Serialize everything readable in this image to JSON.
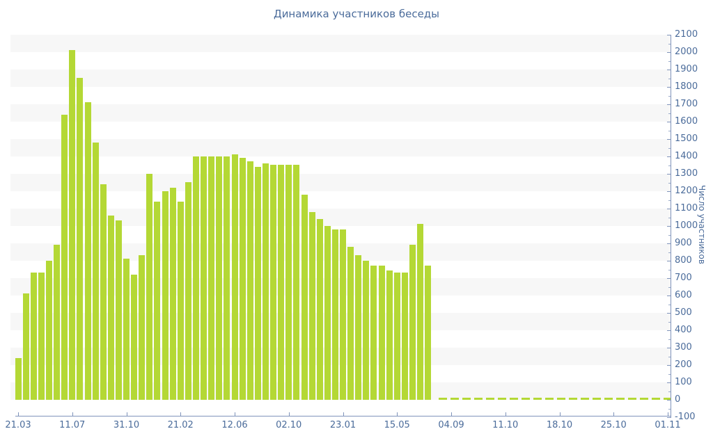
{
  "page": {
    "background": "#ffffff"
  },
  "chart_data": {
    "type": "bar",
    "title": "Динамика участников беседы",
    "xlabel": "",
    "ylabel": "Число участников",
    "legend": "none",
    "grid": "horizontal-striped-bands",
    "ylim": [
      -100,
      2100
    ],
    "y_tick_step": 100,
    "y_tick_labels": [
      "2100",
      "2000",
      "1900",
      "1800",
      "1700",
      "1600",
      "1500",
      "1400",
      "1300",
      "1200",
      "1100",
      "1000",
      "900",
      "800",
      "700",
      "600",
      "500",
      "400",
      "300",
      "200",
      "100",
      "0",
      "-100"
    ],
    "x_tick_labels": [
      "21.03",
      "11.07",
      "31.10",
      "21.02",
      "12.06",
      "02.10",
      "23.01",
      "15.05",
      "04.09",
      "11.10",
      "18.10",
      "25.10",
      "01.11"
    ],
    "label_every": 7,
    "values": [
      240,
      610,
      730,
      730,
      800,
      890,
      1640,
      2010,
      1850,
      1710,
      1480,
      1240,
      1060,
      1030,
      810,
      720,
      830,
      1300,
      1140,
      1200,
      1220,
      1140,
      1250,
      1400,
      1400,
      1400,
      1400,
      1400,
      1410,
      1390,
      1370,
      1340,
      1360,
      1350,
      1350,
      1350,
      1350,
      1180,
      1080,
      1040,
      1000,
      980,
      980,
      880,
      830,
      800,
      770,
      770,
      745,
      730,
      730,
      890,
      1010,
      770,
      0,
      0,
      0,
      0,
      0,
      0,
      0,
      0,
      0,
      0,
      0,
      0,
      0,
      0,
      0,
      0,
      0,
      0,
      0,
      0,
      0,
      0,
      0,
      0,
      0,
      0,
      0,
      0,
      0,
      0,
      0
    ],
    "zero_values_rendered_as": "dashed-line-at-zero",
    "colors": {
      "bar": "#b4d835",
      "axis_line": "#7f93ba",
      "text": "#4a6b9a",
      "band": "#f7f7f7",
      "background": "#ffffff"
    }
  }
}
